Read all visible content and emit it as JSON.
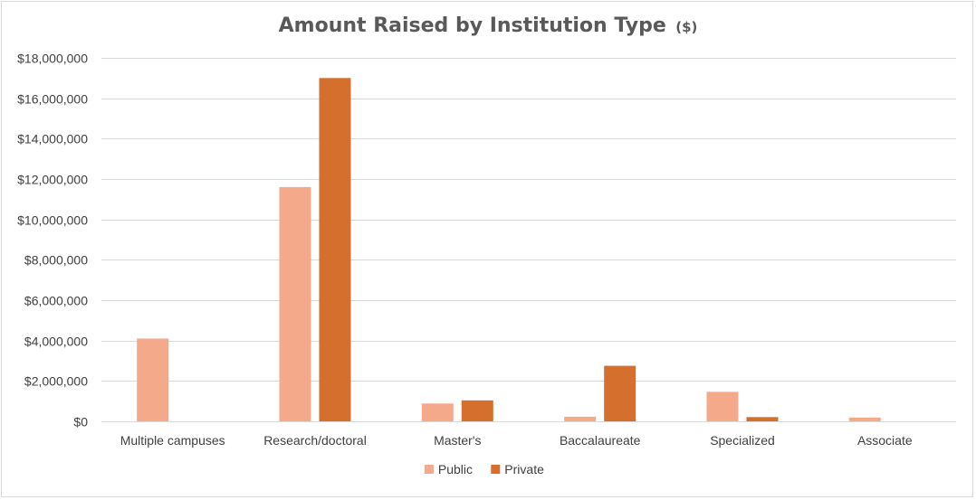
{
  "chart_data": {
    "type": "bar",
    "title": "Amount Raised by Institution Type",
    "title_unit": "($)",
    "categories": [
      "Multiple campuses",
      "Research/doctoral",
      "Master's",
      "Baccalaureate",
      "Specialized",
      "Associate"
    ],
    "series": [
      {
        "name": "Public",
        "color": "#f4a98b",
        "values": [
          4100000,
          11600000,
          880000,
          230000,
          1460000,
          190000
        ]
      },
      {
        "name": "Private",
        "color": "#d46f2d",
        "values": [
          0,
          17000000,
          1040000,
          2750000,
          210000,
          0
        ]
      }
    ],
    "ylim": [
      0,
      18000000
    ],
    "yticks": [
      "$0",
      "$2,000,000",
      "$4,000,000",
      "$6,000,000",
      "$8,000,000",
      "$10,000,000",
      "$12,000,000",
      "$14,000,000",
      "$16,000,000",
      "$18,000,000"
    ],
    "ytick_values": [
      0,
      2000000,
      4000000,
      6000000,
      8000000,
      10000000,
      12000000,
      14000000,
      16000000,
      18000000
    ],
    "grid": true,
    "legend_position": "bottom",
    "xlabel": "",
    "ylabel": ""
  }
}
